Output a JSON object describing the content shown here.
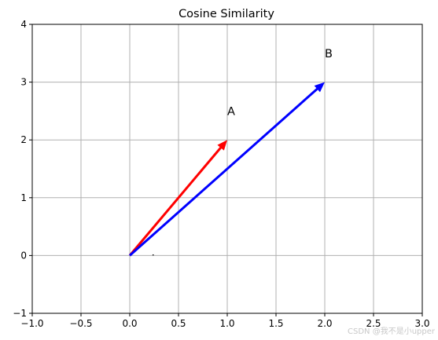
{
  "chart_data": {
    "type": "vector",
    "title": "Cosine Similarity",
    "xlabel": "",
    "ylabel": "",
    "xlim": [
      -1.0,
      3.0
    ],
    "ylim": [
      -1,
      4
    ],
    "xticks": [
      -1.0,
      -0.5,
      0.0,
      0.5,
      1.0,
      1.5,
      2.0,
      2.5,
      3.0
    ],
    "xtick_labels": [
      "−1.0",
      "−0.5",
      "0.0",
      "0.5",
      "1.0",
      "1.5",
      "2.0",
      "2.5",
      "3.0"
    ],
    "yticks": [
      -1,
      0,
      1,
      2,
      3,
      4
    ],
    "ytick_labels": [
      "−1",
      "0",
      "1",
      "2",
      "3",
      "4"
    ],
    "grid": true,
    "vectors": [
      {
        "name": "A",
        "origin": [
          0,
          0
        ],
        "end": [
          1,
          2
        ],
        "color": "#ff0000"
      },
      {
        "name": "B",
        "origin": [
          0,
          0
        ],
        "end": [
          2,
          3
        ],
        "color": "#0000ff"
      }
    ],
    "annotations": [
      {
        "text": "A",
        "x": 1.0,
        "y": 2.5
      },
      {
        "text": "B",
        "x": 2.0,
        "y": 3.5
      }
    ],
    "dot": {
      "x": 0.24,
      "y": 0.01
    }
  },
  "watermark": "CSDN @我不是小upper"
}
